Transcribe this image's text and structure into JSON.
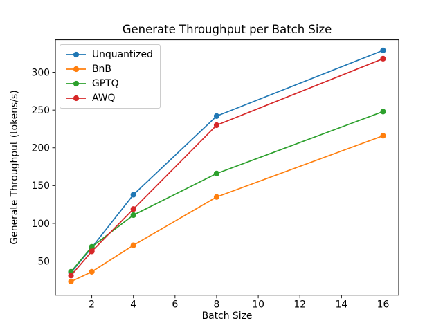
{
  "figure": {
    "title": "Generate Throughput per Batch Size",
    "xlabel": "Batch Size",
    "ylabel": "Generate Throughput (tokens/s)"
  },
  "chart_data": {
    "type": "line",
    "title": "Generate Throughput per Batch Size",
    "xlabel": "Batch Size",
    "ylabel": "Generate Throughput (tokens/s)",
    "x": [
      1,
      2,
      4,
      8,
      16
    ],
    "series": [
      {
        "name": "Unquantized",
        "color": "#1f77b4",
        "values": [
          35,
          68,
          138,
          242,
          329
        ]
      },
      {
        "name": "BnB",
        "color": "#ff7f0e",
        "values": [
          23,
          36,
          71,
          135,
          216
        ]
      },
      {
        "name": "GPTQ",
        "color": "#2ca02c",
        "values": [
          36,
          69,
          111,
          166,
          248
        ]
      },
      {
        "name": "AWQ",
        "color": "#d62728",
        "values": [
          31,
          63,
          119,
          230,
          318
        ]
      }
    ],
    "xticks": [
      2,
      4,
      6,
      8,
      10,
      12,
      14,
      16
    ],
    "yticks": [
      50,
      100,
      150,
      200,
      250,
      300
    ],
    "xlim": [
      0.25,
      16.75
    ],
    "ylim": [
      5,
      343
    ],
    "grid": false,
    "marker": "o",
    "legend_position": "upper left",
    "axis_color": "#000000",
    "background_color": "#ffffff"
  }
}
